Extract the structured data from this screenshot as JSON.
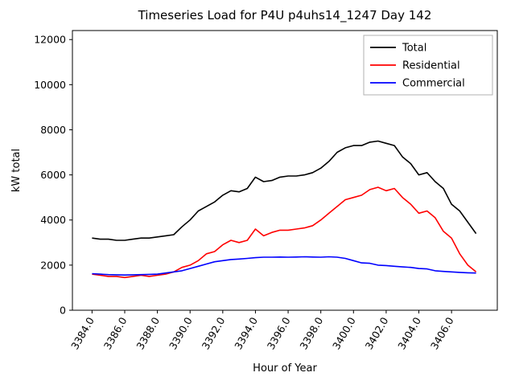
{
  "chart_data": {
    "type": "line",
    "title": "Timeseries Load for P4U p4uhs14_1247  Day 142",
    "xlabel": "Hour of Year",
    "ylabel": "kW total",
    "xlim": [
      3382.8,
      3408.8
    ],
    "ylim": [
      0,
      12400
    ],
    "xticks": [
      3384.0,
      3386.0,
      3388.0,
      3390.0,
      3392.0,
      3394.0,
      3396.0,
      3398.0,
      3400.0,
      3402.0,
      3404.0,
      3406.0
    ],
    "yticks": [
      0,
      2000,
      4000,
      6000,
      8000,
      10000,
      12000
    ],
    "grid": false,
    "legend_position": "upper right",
    "x": [
      3384.0,
      3384.5,
      3385.0,
      3385.5,
      3386.0,
      3386.5,
      3387.0,
      3387.5,
      3388.0,
      3388.5,
      3389.0,
      3389.5,
      3390.0,
      3390.5,
      3391.0,
      3391.5,
      3392.0,
      3392.5,
      3393.0,
      3393.5,
      3394.0,
      3394.5,
      3395.0,
      3395.5,
      3396.0,
      3396.5,
      3397.0,
      3397.5,
      3398.0,
      3398.5,
      3399.0,
      3399.5,
      3400.0,
      3400.5,
      3401.0,
      3401.5,
      3402.0,
      3402.5,
      3403.0,
      3403.5,
      3404.0,
      3404.5,
      3405.0,
      3405.5,
      3406.0,
      3406.5,
      3407.0,
      3407.5
    ],
    "series": [
      {
        "name": "Total",
        "color": "#000000",
        "values": [
          3200,
          3150,
          3150,
          3100,
          3100,
          3150,
          3200,
          3200,
          3250,
          3300,
          3350,
          3700,
          4000,
          4400,
          4600,
          4800,
          5100,
          5300,
          5250,
          5400,
          5900,
          5700,
          5750,
          5900,
          5950,
          5950,
          6000,
          6100,
          6300,
          6600,
          7000,
          7200,
          7300,
          7300,
          7450,
          7500,
          7400,
          7300,
          6800,
          6500,
          6000,
          6100,
          5700,
          5400,
          4700,
          4400,
          3900,
          3400
        ]
      },
      {
        "name": "Residential",
        "color": "#ff0000",
        "values": [
          1600,
          1550,
          1500,
          1500,
          1450,
          1500,
          1550,
          1500,
          1550,
          1600,
          1700,
          1900,
          2000,
          2200,
          2500,
          2600,
          2900,
          3100,
          3000,
          3100,
          3600,
          3300,
          3450,
          3550,
          3550,
          3600,
          3650,
          3750,
          4000,
          4300,
          4600,
          4900,
          5000,
          5100,
          5350,
          5450,
          5300,
          5400,
          5000,
          4700,
          4300,
          4400,
          4100,
          3500,
          3200,
          2500,
          2000,
          1700
        ]
      },
      {
        "name": "Commercial",
        "color": "#0000ff",
        "values": [
          1620,
          1600,
          1580,
          1570,
          1560,
          1570,
          1580,
          1590,
          1600,
          1650,
          1700,
          1750,
          1850,
          1950,
          2050,
          2150,
          2200,
          2250,
          2270,
          2300,
          2330,
          2350,
          2350,
          2360,
          2350,
          2360,
          2370,
          2360,
          2350,
          2370,
          2350,
          2300,
          2200,
          2100,
          2080,
          2000,
          1980,
          1950,
          1920,
          1900,
          1850,
          1830,
          1750,
          1720,
          1700,
          1680,
          1660,
          1650
        ]
      }
    ]
  }
}
